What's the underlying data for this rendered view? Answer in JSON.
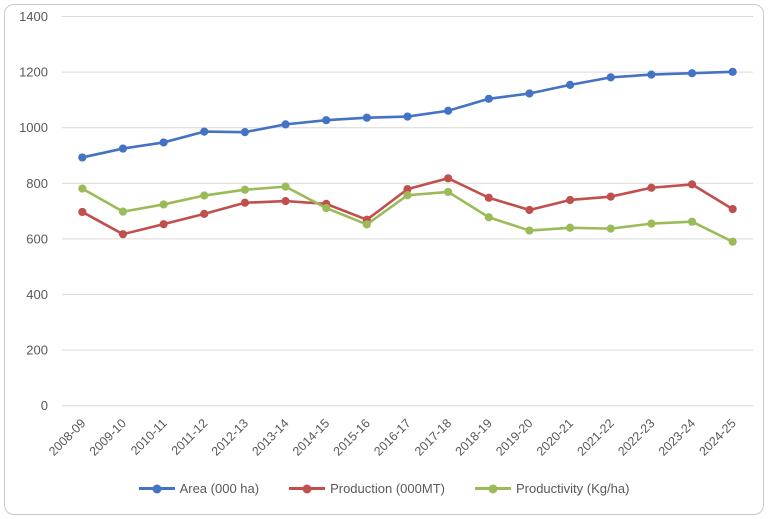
{
  "chart_data": {
    "type": "line",
    "title": "",
    "categories": [
      "2008-09",
      "2009-10",
      "2010-11",
      "2011-12",
      "2012-13",
      "2013-14",
      "2014-15",
      "2015-16",
      "2016-17",
      "2017-18",
      "2018-19",
      "2019-20",
      "2020-21",
      "2021-22",
      "2022-23",
      "2023-24",
      "2024-25"
    ],
    "series": [
      {
        "name": "Area (000 ha)",
        "color": "#4472C4",
        "values": [
          893,
          925,
          947,
          986,
          984,
          1012,
          1027,
          1036,
          1040,
          1061,
          1104,
          1123,
          1154,
          1181,
          1191,
          1196,
          1201
        ]
      },
      {
        "name": "Production (000MT)",
        "color": "#C0504D",
        "values": [
          697,
          617,
          653,
          690,
          730,
          736,
          726,
          669,
          779,
          818,
          748,
          704,
          740,
          752,
          784,
          796,
          707
        ]
      },
      {
        "name": "Productivity (Kg/ha)",
        "color": "#9BBB59",
        "values": [
          781,
          698,
          724,
          756,
          777,
          788,
          711,
          652,
          757,
          769,
          678,
          630,
          640,
          637,
          655,
          662,
          590
        ]
      }
    ],
    "ylim": [
      0,
      1400
    ],
    "y_ticks": [
      "0",
      "200",
      "400",
      "600",
      "800",
      "1000",
      "1200",
      "1400"
    ],
    "grid": "horizontal",
    "legend_position": "bottom",
    "axis_label_color": "#595959",
    "gridline_color": "#D9D9D9",
    "frame_color": "#C9C9C9"
  }
}
